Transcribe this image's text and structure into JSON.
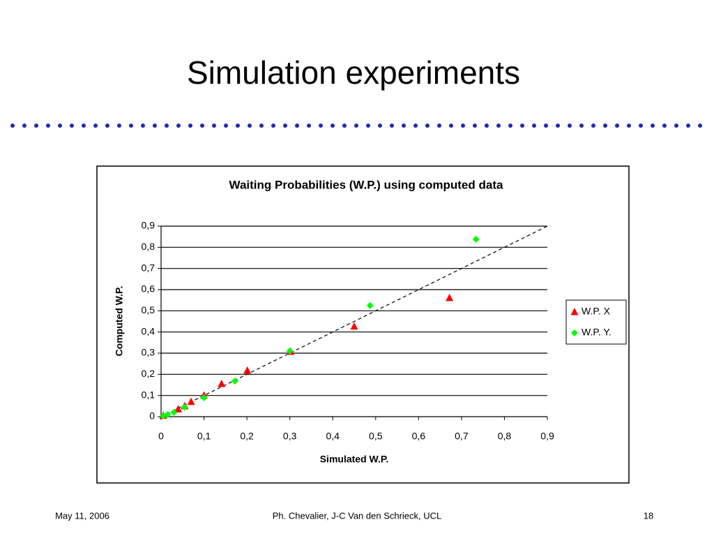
{
  "slide": {
    "title": "Simulation experiments",
    "footer": {
      "date": "May 11, 2006",
      "authors": "Ph. Chevalier, J-C Van den Schrieck, UCL",
      "page": "18"
    }
  },
  "chart_data": {
    "type": "scatter",
    "title": "Waiting Probabilities (W.P.) using computed data",
    "x_label": "Simulated W.P.",
    "y_label": "Computed W.P.",
    "xlim": [
      0,
      0.9
    ],
    "ylim": [
      0,
      0.9
    ],
    "xticks": [
      0,
      {
        "value": 0.1,
        "label": "0,1"
      },
      {
        "value": 0.2,
        "label": "0,2"
      },
      {
        "value": 0.3,
        "label": "0,3"
      },
      {
        "value": 0.4,
        "label": "0,4"
      },
      {
        "value": 0.5,
        "label": "0,5"
      },
      {
        "value": 0.6,
        "label": "0,6"
      },
      {
        "value": 0.7,
        "label": "0,7"
      },
      {
        "value": 0.8,
        "label": "0,8"
      },
      {
        "value": 0.9,
        "label": "0,9"
      }
    ],
    "yticks": [
      0,
      {
        "value": 0.1,
        "label": "0,1"
      },
      {
        "value": 0.2,
        "label": "0,2"
      },
      {
        "value": 0.3,
        "label": "0,3"
      },
      {
        "value": 0.4,
        "label": "0,4"
      },
      {
        "value": 0.5,
        "label": "0,5"
      },
      {
        "value": 0.6,
        "label": "0,6"
      },
      {
        "value": 0.7,
        "label": "0,7"
      },
      {
        "value": 0.8,
        "label": "0,8"
      },
      {
        "value": 0.9,
        "label": "0,9"
      }
    ],
    "grid": true,
    "legend": "right",
    "series": [
      {
        "name": "W.P. X",
        "color": "#ff0000",
        "marker": "triangle",
        "x": [
          0.005,
          0.04,
          0.055,
          0.07,
          0.1,
          0.141,
          0.201,
          0.302,
          0.45,
          0.672
        ],
        "values": [
          0.005,
          0.035,
          0.05,
          0.07,
          0.1,
          0.155,
          0.218,
          0.307,
          0.426,
          0.561
        ]
      },
      {
        "name": "W.P. Y.",
        "color": "#00ff00",
        "marker": "diamond",
        "x": [
          0.005,
          0.015,
          0.03,
          0.055,
          0.1,
          0.172,
          0.3,
          0.487,
          0.734
        ],
        "values": [
          0.003,
          0.01,
          0.02,
          0.045,
          0.09,
          0.168,
          0.31,
          0.525,
          0.838
        ]
      }
    ]
  }
}
